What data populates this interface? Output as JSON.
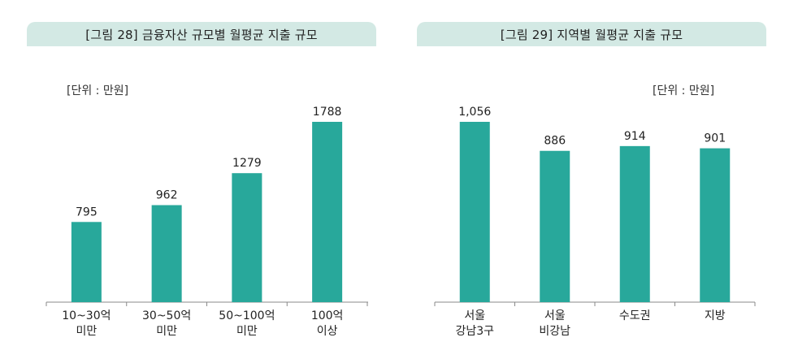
{
  "theme": {
    "bar_color": "#28a89b",
    "tab_color": "#d3e9e4",
    "axis_color": "#888888"
  },
  "charts": [
    {
      "title": "[그림 28] 금융자산 규모별 월평균 지출 규모",
      "unit": "[단위 : 만원]"
    },
    {
      "title": "[그림 29] 지역별 월평균 지출 규모",
      "unit": "[단위 : 만원]"
    }
  ],
  "chart_data": [
    {
      "type": "bar",
      "title": "[그림 28] 금융자산 규모별 월평균 지출 규모",
      "ylabel": "[단위 : 만원]",
      "categories": [
        [
          "10~30억",
          "미만"
        ],
        [
          "30~50억",
          "미만"
        ],
        [
          "50~100억",
          "미만"
        ],
        [
          "100억",
          "이상"
        ]
      ],
      "values": [
        795,
        962,
        1279,
        1788
      ],
      "value_labels": [
        "795",
        "962",
        "1279",
        "1788"
      ],
      "ylim": [
        0,
        2000
      ],
      "grid": false
    },
    {
      "type": "bar",
      "title": "[그림 29] 지역별 월평균 지출 규모",
      "ylabel": "[단위 : 만원]",
      "categories": [
        [
          "서울",
          "강남3구"
        ],
        [
          "서울",
          "비강남"
        ],
        [
          "수도권"
        ],
        [
          "지방"
        ]
      ],
      "values": [
        1056,
        886,
        914,
        901
      ],
      "value_labels": [
        "1,056",
        "886",
        "914",
        "901"
      ],
      "ylim": [
        0,
        1250
      ],
      "grid": false
    }
  ]
}
